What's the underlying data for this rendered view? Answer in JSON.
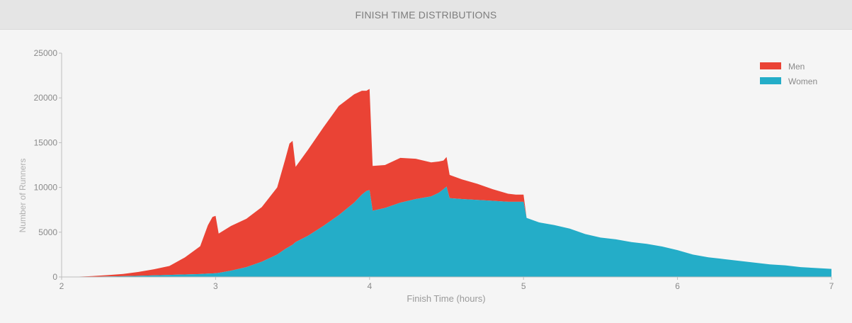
{
  "header": {
    "title": "FINISH TIME DISTRIBUTIONS"
  },
  "chart_data": {
    "type": "area",
    "stacked": true,
    "title": "FINISH TIME DISTRIBUTIONS",
    "xlabel": "Finish Time (hours)",
    "ylabel": "Number of Runners",
    "xlim": [
      2,
      7
    ],
    "ylim": [
      0,
      25000
    ],
    "x_ticks": [
      "2",
      "3",
      "4",
      "5",
      "6",
      "7"
    ],
    "y_ticks": [
      "0",
      "5000",
      "10000",
      "15000",
      "20000",
      "25000"
    ],
    "grid": false,
    "legend_position": "top-right",
    "colors": {
      "Men": "#ea4335",
      "Women": "#24adc8"
    },
    "x": [
      2.1,
      2.2,
      2.3,
      2.4,
      2.5,
      2.6,
      2.7,
      2.8,
      2.9,
      2.95,
      2.98,
      3.0,
      3.02,
      3.1,
      3.2,
      3.3,
      3.4,
      3.45,
      3.48,
      3.5,
      3.52,
      3.6,
      3.7,
      3.8,
      3.9,
      3.95,
      3.98,
      4.0,
      4.02,
      4.1,
      4.2,
      4.3,
      4.4,
      4.45,
      4.48,
      4.5,
      4.52,
      4.6,
      4.7,
      4.8,
      4.9,
      4.95,
      4.98,
      5.0,
      5.02,
      5.1,
      5.2,
      5.3,
      5.4,
      5.5,
      5.6,
      5.7,
      5.8,
      5.9,
      6.0,
      6.1,
      6.2,
      6.3,
      6.4,
      6.5,
      6.6,
      6.7,
      6.8,
      6.9,
      7.0
    ],
    "series": [
      {
        "name": "Women",
        "values": [
          10,
          30,
          60,
          90,
          130,
          180,
          230,
          280,
          330,
          380,
          400,
          420,
          450,
          700,
          1100,
          1700,
          2500,
          3100,
          3400,
          3600,
          3900,
          4600,
          5700,
          6900,
          8300,
          9200,
          9600,
          9700,
          7400,
          7700,
          8300,
          8700,
          9000,
          9400,
          9800,
          10100,
          8800,
          8700,
          8600,
          8500,
          8400,
          8400,
          8400,
          8400,
          6600,
          6100,
          5800,
          5400,
          4800,
          4400,
          4200,
          3900,
          3700,
          3400,
          3000,
          2500,
          2200,
          2000,
          1800,
          1600,
          1400,
          1300,
          1100,
          1000,
          900
        ]
      },
      {
        "name": "Men",
        "values": [
          20,
          70,
          150,
          250,
          430,
          680,
          1000,
          1900,
          3100,
          5400,
          6300,
          6400,
          4400,
          5000,
          5400,
          6100,
          7500,
          9900,
          11500,
          11600,
          8400,
          9600,
          11000,
          12200,
          12100,
          11600,
          11200,
          11300,
          5000,
          4800,
          5000,
          4500,
          3800,
          3500,
          3200,
          3300,
          2600,
          2200,
          1800,
          1300,
          900,
          800,
          800,
          800,
          0,
          0,
          0,
          0,
          0,
          0,
          0,
          0,
          0,
          0,
          0,
          0,
          0,
          0,
          0,
          0,
          0,
          0,
          0,
          0,
          0
        ]
      }
    ]
  }
}
